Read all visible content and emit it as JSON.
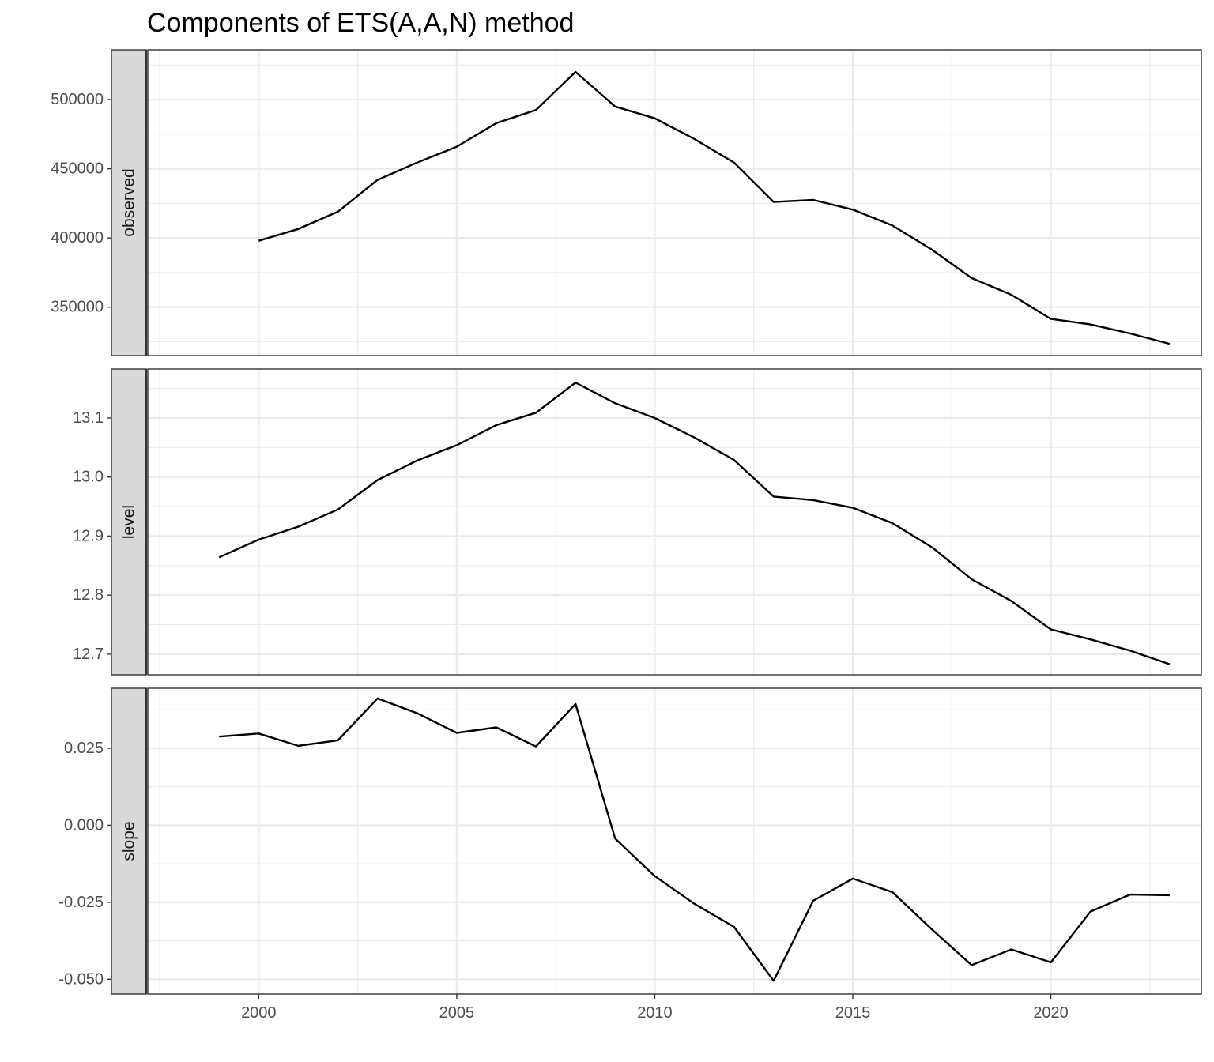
{
  "chart_data": {
    "type": "line",
    "title": "Components of ETS(A,A,N) method",
    "xlabel": "",
    "ylabel": "",
    "grid": true,
    "x": {
      "lim": [
        1997.2,
        2023.8
      ],
      "ticks": [
        2000,
        2005,
        2010,
        2015,
        2020
      ],
      "tick_labels": [
        "2000",
        "2005",
        "2010",
        "2015",
        "2020"
      ]
    },
    "panels": [
      {
        "name": "observed",
        "ylim": [
          315000,
          536000
        ],
        "yticks": [
          350000,
          400000,
          450000,
          500000
        ],
        "ytick_labels": [
          "350000",
          "400000",
          "450000",
          "500000"
        ],
        "x": [
          2000,
          2001,
          2002,
          2003,
          2004,
          2005,
          2006,
          2007,
          2008,
          2009,
          2010,
          2011,
          2012,
          2013,
          2014,
          2015,
          2016,
          2017,
          2018,
          2019,
          2020,
          2021,
          2022,
          2023
        ],
        "values": [
          398000,
          406500,
          419000,
          442000,
          454500,
          466000,
          483000,
          492500,
          520000,
          495000,
          486500,
          471500,
          454500,
          426000,
          427500,
          420500,
          409000,
          391500,
          371000,
          359000,
          341500,
          337500,
          331000,
          323500
        ]
      },
      {
        "name": "level",
        "ylim": [
          12.665,
          13.183
        ],
        "yticks": [
          12.7,
          12.8,
          12.9,
          13.0,
          13.1
        ],
        "ytick_labels": [
          "12.7",
          "12.8",
          "12.9",
          "13.0",
          "13.1"
        ],
        "x": [
          1999,
          2000,
          2001,
          2002,
          2003,
          2004,
          2005,
          2006,
          2007,
          2008,
          2009,
          2010,
          2011,
          2012,
          2013,
          2014,
          2015,
          2016,
          2017,
          2018,
          2019,
          2020,
          2021,
          2022,
          2023
        ],
        "values": [
          12.864,
          12.894,
          12.916,
          12.945,
          12.995,
          13.028,
          13.054,
          13.088,
          13.109,
          13.16,
          13.125,
          13.1,
          13.067,
          13.029,
          12.967,
          12.961,
          12.948,
          12.922,
          12.881,
          12.827,
          12.79,
          12.742,
          12.725,
          12.706,
          12.683
        ]
      },
      {
        "name": "slope",
        "ylim": [
          -0.0548,
          0.0445
        ],
        "yticks": [
          -0.05,
          -0.025,
          0.0,
          0.025
        ],
        "ytick_labels": [
          "-0.050",
          "-0.025",
          "0.000",
          "0.025"
        ],
        "x": [
          1999,
          2000,
          2001,
          2002,
          2003,
          2004,
          2005,
          2006,
          2007,
          2008,
          2009,
          2010,
          2011,
          2012,
          2013,
          2014,
          2015,
          2016,
          2017,
          2018,
          2019,
          2020,
          2021,
          2022,
          2023
        ],
        "values": [
          0.0288,
          0.0298,
          0.0258,
          0.0276,
          0.0412,
          0.0364,
          0.03,
          0.0318,
          0.0256,
          0.0394,
          -0.0043,
          -0.0165,
          -0.0255,
          -0.033,
          -0.0505,
          -0.0245,
          -0.0173,
          -0.0217,
          -0.0338,
          -0.0454,
          -0.0403,
          -0.0445,
          -0.028,
          -0.0225,
          -0.0227
        ]
      }
    ]
  }
}
